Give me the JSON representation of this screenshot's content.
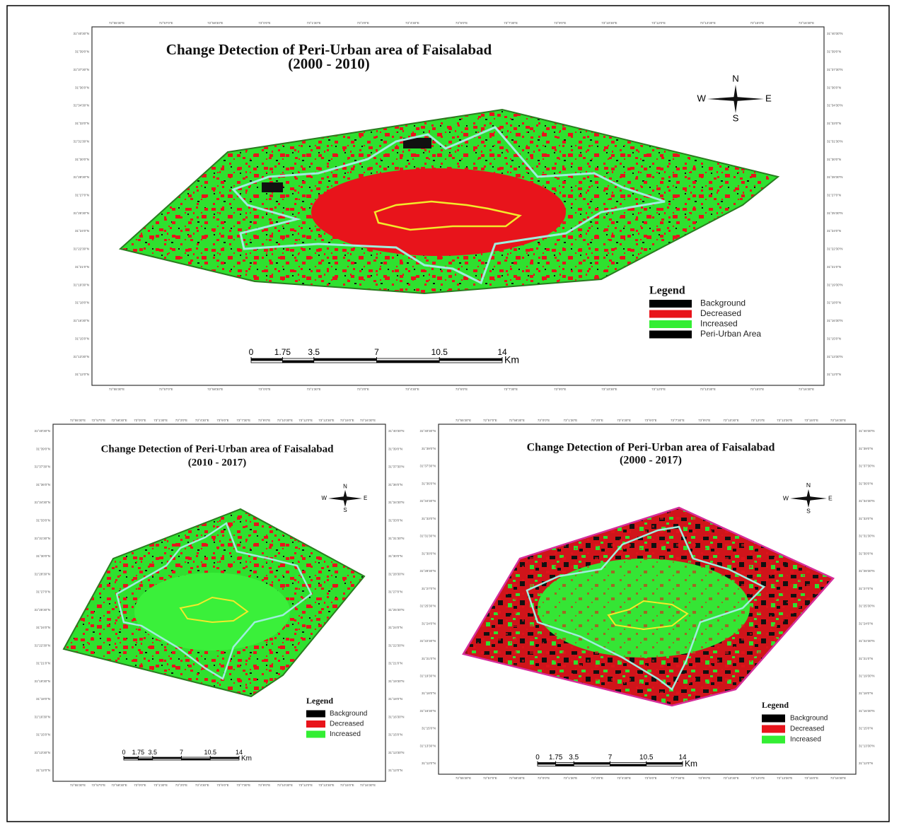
{
  "maps": [
    {
      "title": "Change Detection of Peri-Urban area of Faisalabad",
      "subtitle": "(2000 - 2010)",
      "legend": {
        "title": "Legend",
        "items": [
          {
            "label": "Background",
            "color": "#000000"
          },
          {
            "label": "Decreased",
            "color": "#e8141b"
          },
          {
            "label": "Increased",
            "color": "#33ee33"
          },
          {
            "label": "Peri-Urban Area",
            "color": "#000000"
          }
        ]
      },
      "scale": {
        "ticks": [
          0,
          1.75,
          3.5,
          7,
          10.5,
          14
        ],
        "unit": "Km"
      },
      "compass": {
        "n": "N",
        "s": "S",
        "e": "E",
        "w": "W"
      },
      "lon_labels": [
        "72°55'30\"E",
        "72°57'0\"E",
        "72°58'30\"E",
        "73°0'0\"E",
        "73°1'30\"E",
        "73°3'0\"E",
        "73°4'30\"E",
        "73°6'0\"E",
        "73°7'30\"E",
        "73°9'0\"E",
        "73°10'30\"E",
        "73°12'0\"E",
        "73°13'30\"E",
        "73°15'0\"E",
        "73°16'30\"E"
      ],
      "lat_labels": [
        "31°40'30\"N",
        "31°39'0\"N",
        "31°37'30\"N",
        "31°36'0\"N",
        "31°34'30\"N",
        "31°33'0\"N",
        "31°31'30\"N",
        "31°30'0\"N",
        "31°28'30\"N",
        "31°27'0\"N",
        "31°25'30\"N",
        "31°24'0\"N",
        "31°22'30\"N",
        "31°21'0\"N",
        "31°19'30\"N",
        "31°18'0\"N",
        "31°16'30\"N",
        "31°15'0\"N",
        "31°13'30\"N",
        "31°12'0\"N"
      ]
    },
    {
      "title": "Change Detection of Peri-Urban area of Faisalabad",
      "subtitle": "(2010 - 2017)",
      "legend": {
        "title": "Legend",
        "items": [
          {
            "label": "Background",
            "color": "#000000"
          },
          {
            "label": "Decreased",
            "color": "#e8141b"
          },
          {
            "label": "Increased",
            "color": "#33ee33"
          }
        ]
      },
      "scale": {
        "ticks": [
          0,
          1.75,
          3.5,
          7,
          10.5,
          14
        ],
        "unit": "Km"
      },
      "compass": {
        "n": "N",
        "s": "S",
        "e": "E",
        "w": "W"
      },
      "lon_labels": [
        "72°55'30\"E",
        "72°57'0\"E",
        "72°58'30\"E",
        "73°0'0\"E",
        "73°1'30\"E",
        "73°3'0\"E",
        "73°4'30\"E",
        "73°6'0\"E",
        "73°7'30\"E",
        "73°9'0\"E",
        "73°10'30\"E",
        "73°12'0\"E",
        "73°13'30\"E",
        "73°15'0\"E",
        "73°16'30\"E"
      ],
      "lat_labels": [
        "31°40'30\"N",
        "31°39'0\"N",
        "31°37'30\"N",
        "31°36'0\"N",
        "31°34'30\"N",
        "31°33'0\"N",
        "31°31'30\"N",
        "31°30'0\"N",
        "31°28'30\"N",
        "31°27'0\"N",
        "31°25'30\"N",
        "31°24'0\"N",
        "31°22'30\"N",
        "31°21'0\"N",
        "31°19'30\"N",
        "31°18'0\"N",
        "31°16'30\"N",
        "31°15'0\"N",
        "31°13'30\"N",
        "31°12'0\"N"
      ]
    },
    {
      "title": "Change Detection of Peri-Urban area of Faisalabad",
      "subtitle": "(2000 - 2017)",
      "legend": {
        "title": "Legend",
        "items": [
          {
            "label": "Background",
            "color": "#000000"
          },
          {
            "label": "Decreased",
            "color": "#e8141b"
          },
          {
            "label": "Increased",
            "color": "#33ee33"
          }
        ]
      },
      "scale": {
        "ticks": [
          0,
          1.75,
          3.5,
          7,
          10.5,
          14
        ],
        "unit": "Km"
      },
      "compass": {
        "n": "N",
        "s": "S",
        "e": "E",
        "w": "W"
      },
      "lon_labels": [
        "72°55'30\"E",
        "72°57'0\"E",
        "72°58'30\"E",
        "73°0'0\"E",
        "73°1'30\"E",
        "73°3'0\"E",
        "73°4'30\"E",
        "73°6'0\"E",
        "73°7'30\"E",
        "73°9'0\"E",
        "73°10'30\"E",
        "73°12'0\"E",
        "73°13'30\"E",
        "73°15'0\"E",
        "73°16'30\"E"
      ],
      "lat_labels": [
        "31°40'30\"N",
        "31°39'0\"N",
        "31°37'30\"N",
        "31°36'0\"N",
        "31°34'30\"N",
        "31°33'0\"N",
        "31°31'30\"N",
        "31°30'0\"N",
        "31°28'30\"N",
        "31°27'0\"N",
        "31°25'30\"N",
        "31°24'0\"N",
        "31°22'30\"N",
        "31°21'0\"N",
        "31°19'30\"N",
        "31°18'0\"N",
        "31°16'30\"N",
        "31°15'0\"N",
        "31°13'30\"N",
        "31°12'0\"N"
      ]
    }
  ]
}
